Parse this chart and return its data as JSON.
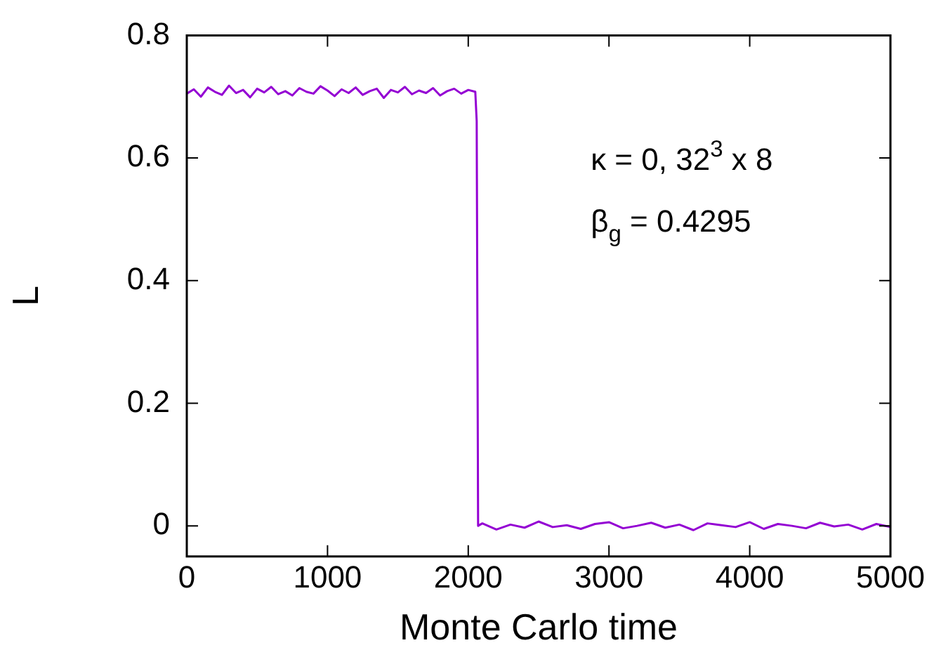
{
  "chart_data": {
    "type": "line",
    "xlabel": "Monte Carlo time",
    "ylabel": "L",
    "annotations": [
      "κ = 0, 32$^{3}$ x 8",
      "β$_{g}$ = 0.4295"
    ],
    "xlim": [
      0,
      5000
    ],
    "xticks": [
      0,
      1000,
      2000,
      3000,
      4000,
      5000
    ],
    "ylim": [
      -0.05,
      0.8
    ],
    "yticks": [
      0,
      0.2,
      0.4,
      0.6,
      0.8
    ],
    "marker": "none",
    "line_style": "solid",
    "legend": false,
    "series": [
      {
        "color": "#9400d3",
        "x": [
          0,
          50,
          100,
          150,
          200,
          250,
          300,
          350,
          400,
          450,
          500,
          550,
          600,
          650,
          700,
          750,
          800,
          850,
          900,
          950,
          1000,
          1050,
          1100,
          1150,
          1200,
          1250,
          1300,
          1350,
          1400,
          1450,
          1500,
          1550,
          1600,
          1650,
          1700,
          1750,
          1800,
          1850,
          1900,
          1950,
          2000,
          2050,
          2060,
          2070,
          2100,
          2200,
          2300,
          2400,
          2500,
          2600,
          2700,
          2800,
          2900,
          3000,
          3100,
          3200,
          3300,
          3400,
          3500,
          3600,
          3700,
          3800,
          3900,
          4000,
          4100,
          4200,
          4300,
          4400,
          4500,
          4600,
          4700,
          4800,
          4900,
          5000
        ],
        "values": [
          0.705,
          0.712,
          0.7,
          0.715,
          0.708,
          0.703,
          0.718,
          0.706,
          0.711,
          0.699,
          0.713,
          0.707,
          0.716,
          0.704,
          0.709,
          0.702,
          0.714,
          0.708,
          0.705,
          0.717,
          0.71,
          0.701,
          0.712,
          0.706,
          0.715,
          0.703,
          0.709,
          0.713,
          0.698,
          0.711,
          0.707,
          0.716,
          0.704,
          0.71,
          0.706,
          0.714,
          0.702,
          0.709,
          0.713,
          0.705,
          0.711,
          0.708,
          0.66,
          0.0,
          0.004,
          -0.006,
          0.002,
          -0.003,
          0.007,
          -0.002,
          0.001,
          -0.005,
          0.003,
          0.006,
          -0.004,
          0.0,
          0.005,
          -0.003,
          0.002,
          -0.007,
          0.004,
          0.001,
          -0.002,
          0.006,
          -0.005,
          0.003,
          0.0,
          -0.004,
          0.005,
          -0.001,
          0.002,
          -0.006,
          0.003,
          -0.002
        ]
      }
    ]
  }
}
